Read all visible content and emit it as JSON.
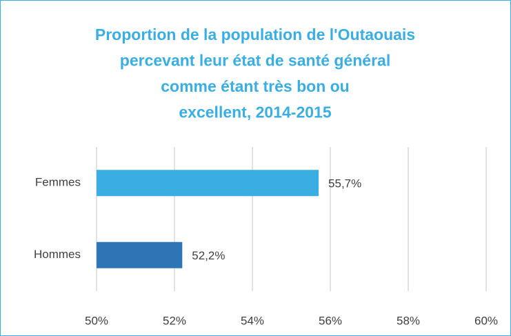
{
  "chart_data": {
    "type": "barh",
    "title": [
      "Proportion de la population de l'Outaouais",
      "percevant leur état de santé général",
      "comme étant très bon ou",
      "excellent, 2014-2015"
    ],
    "categories": [
      "Femmes",
      "Hommes"
    ],
    "values": [
      55.7,
      52.2
    ],
    "value_labels": [
      "55,7%",
      "52,2%"
    ],
    "colors": [
      "#3aaee2",
      "#2e75b6"
    ],
    "xlim": [
      50,
      60
    ],
    "xticks": [
      {
        "value": 50,
        "label": "50%"
      },
      {
        "value": 52,
        "label": "52%"
      },
      {
        "value": 54,
        "label": "54%"
      },
      {
        "value": 56,
        "label": "56%"
      },
      {
        "value": 58,
        "label": "58%"
      },
      {
        "value": 60,
        "label": "60%"
      }
    ],
    "grid": true
  }
}
